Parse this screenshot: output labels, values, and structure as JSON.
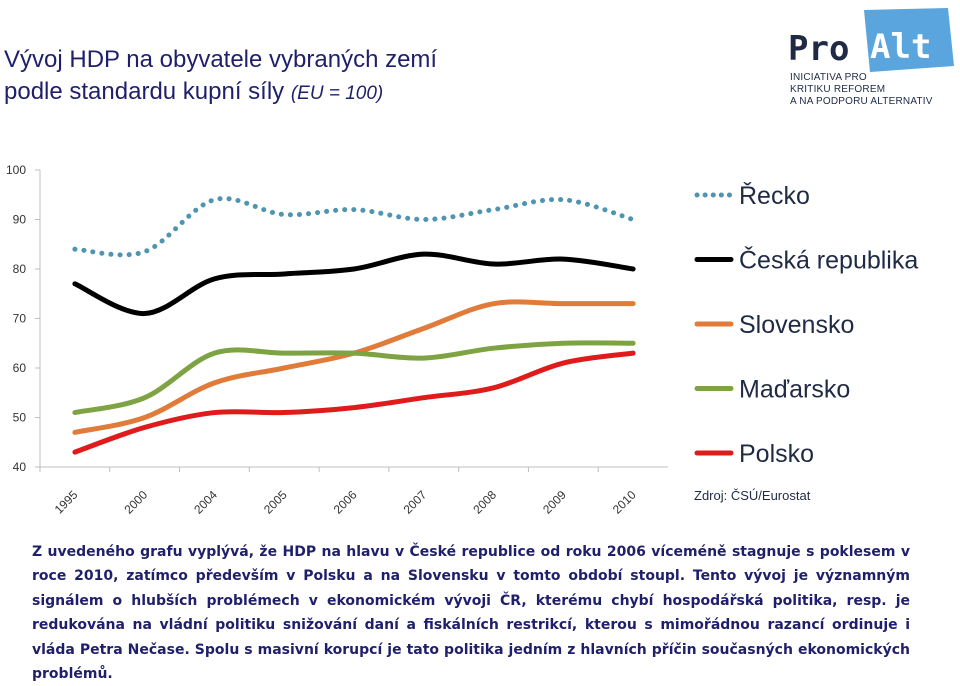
{
  "title": {
    "line1": "Vývoj HDP na obyvatele vybraných zemí",
    "line2": "podle standardu kupní síly",
    "line2_suffix": "(EU = 100)"
  },
  "logo": {
    "brand_pro": "Pro",
    "brand_alt": "Alt",
    "tagline": [
      "INICIATIVA PRO",
      "KRITIKU REFOREM",
      "A NA PODPORU ALTERNATIV"
    ]
  },
  "chart_data": {
    "type": "line",
    "x": [
      "1995",
      "2000",
      "2004",
      "2005",
      "2006",
      "2007",
      "2008",
      "2009",
      "2010"
    ],
    "ylim": [
      40,
      100
    ],
    "yticks": [
      "40",
      "50",
      "60",
      "70",
      "80",
      "90",
      "100"
    ],
    "grid": false,
    "legend_position": "right",
    "series": [
      {
        "name": "Řecko",
        "color": "#4f94b0",
        "dash": "dotted",
        "values": [
          84,
          83.5,
          94,
          91,
          92,
          90,
          92,
          94,
          90
        ]
      },
      {
        "name": "Česká republika",
        "color": "#000000",
        "dash": "solid",
        "values": [
          77,
          71,
          78,
          79,
          80,
          83,
          81,
          82,
          80
        ]
      },
      {
        "name": "Slovensko",
        "color": "#e07b39",
        "dash": "solid",
        "values": [
          47,
          50,
          57,
          60,
          63,
          68,
          73,
          73,
          73
        ]
      },
      {
        "name": "Maďarsko",
        "color": "#7ea343",
        "dash": "solid",
        "values": [
          51,
          54,
          63,
          63,
          63,
          62,
          64,
          65,
          65
        ]
      },
      {
        "name": "Polsko",
        "color": "#e01b1b",
        "dash": "solid",
        "values": [
          43,
          48,
          51,
          51,
          52,
          54,
          56,
          61,
          63
        ]
      }
    ],
    "source": "Zdroj: ČSÚ/Eurostat"
  },
  "paragraph": "Z uvedeného grafu vyplývá, že HDP na hlavu v České republice od roku 2006 víceméně stagnuje s poklesem v roce 2010, zatímco především v Polsku a na Slovensku v tomto období stoupl. Tento vývoj je významným signálem o hlubších problémech v ekonomickém vývoji ČR, kterému chybí hospodářská politika, resp. je redukována na vládní politiku snižování daní a fiskálních restrikcí, kterou s mimořádnou razancí ordinuje i vláda Petra Nečase. Spolu s masivní korupcí je tato politika jedním z hlavních příčin současných ekonomických problémů."
}
